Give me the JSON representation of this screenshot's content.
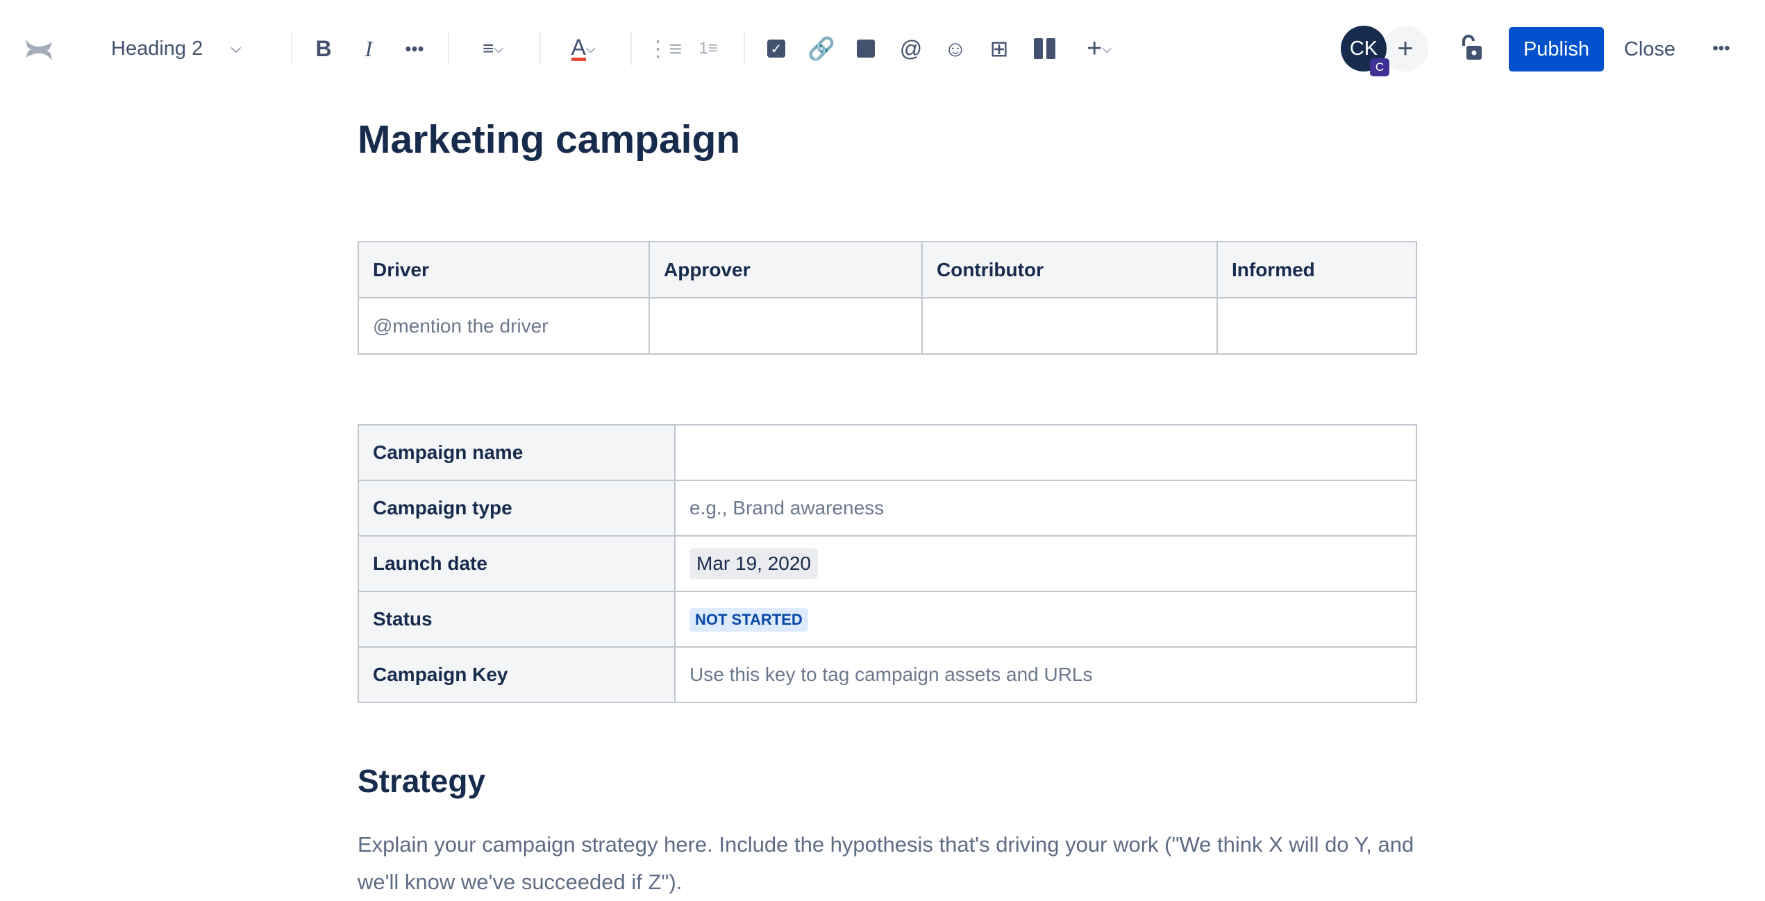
{
  "toolbar": {
    "text_style": "Heading 2",
    "icons": [
      "bold-icon",
      "italic-icon",
      "more-formatting-icon",
      "align-icon",
      "text-color-icon",
      "bullet-list-icon",
      "numbered-list-icon",
      "task-icon",
      "link-icon",
      "image-icon",
      "mention-icon",
      "emoji-icon",
      "table-icon",
      "layout-icon",
      "insert-icon"
    ],
    "avatar_initials": "CK",
    "avatar_badge": "C",
    "publish_label": "Publish",
    "close_label": "Close",
    "accent": "#0052cc"
  },
  "page": {
    "title": "Marketing campaign",
    "daci": {
      "headers": [
        "Driver",
        "Approver",
        "Contributor",
        "Informed"
      ],
      "row": [
        "@mention the driver",
        "",
        "",
        ""
      ]
    },
    "details": [
      {
        "label": "Campaign name",
        "value": ""
      },
      {
        "label": "Campaign type",
        "value": "e.g., Brand awareness"
      },
      {
        "label": "Launch date",
        "value": "Mar 19, 2020"
      },
      {
        "label": "Status",
        "value": "NOT STARTED"
      },
      {
        "label": "Campaign Key",
        "value": "Use this key to tag campaign assets and URLs"
      }
    ],
    "strategy_heading": "Strategy",
    "strategy_text": "Explain your campaign strategy here. Include the hypothesis that's driving your work (\"We think X will do Y, and we'll know we've succeeded if Z\")."
  }
}
